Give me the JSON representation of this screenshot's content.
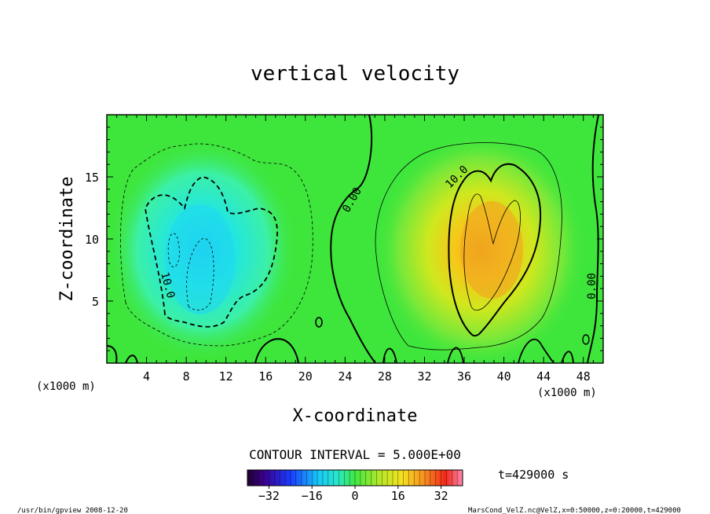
{
  "chart_data": {
    "type": "heatmap",
    "title": "vertical velocity",
    "xlabel": "X-coordinate",
    "ylabel": "Z-coordinate",
    "x_unit_left": "(x1000 m)",
    "x_unit_right": "(x1000 m)",
    "xlim": [
      0,
      50
    ],
    "ylim": [
      0,
      20
    ],
    "xticks": [
      4,
      8,
      12,
      16,
      20,
      24,
      28,
      32,
      36,
      40,
      44,
      48
    ],
    "yticks": [
      5,
      10,
      15
    ],
    "colorbar": {
      "range": [
        -40,
        40
      ],
      "ticks": [
        -32,
        -16,
        0,
        16,
        32
      ],
      "tick_labels": [
        "−32",
        "−16",
        "0",
        "16",
        "32"
      ]
    },
    "contour_interval_text": "CONTOUR INTERVAL = 5.000E+00",
    "contour_labels": [
      {
        "text": "0.00",
        "x": 25.0,
        "z": 13.0,
        "rotate": -60
      },
      {
        "text": "10.0",
        "x": 35.5,
        "z": 14.8,
        "rotate": -45
      },
      {
        "text": "10.0",
        "x": 5.8,
        "z": 6.2,
        "rotate": 75
      },
      {
        "text": "0.00",
        "x": 49.2,
        "z": 6.2,
        "rotate": -90
      }
    ],
    "features": [
      {
        "name": "downdraft",
        "x": 10,
        "z": 8,
        "peak": -15
      },
      {
        "name": "updraft",
        "x": 38.5,
        "z": 8,
        "peak": 25
      }
    ],
    "time_text": "t=429000 s",
    "footer_left": "/usr/bin/gpview   2008-12-20",
    "footer_right": "MarsCond_VelZ.nc@VelZ,x=0:50000,z=0:20000,t=429000"
  }
}
